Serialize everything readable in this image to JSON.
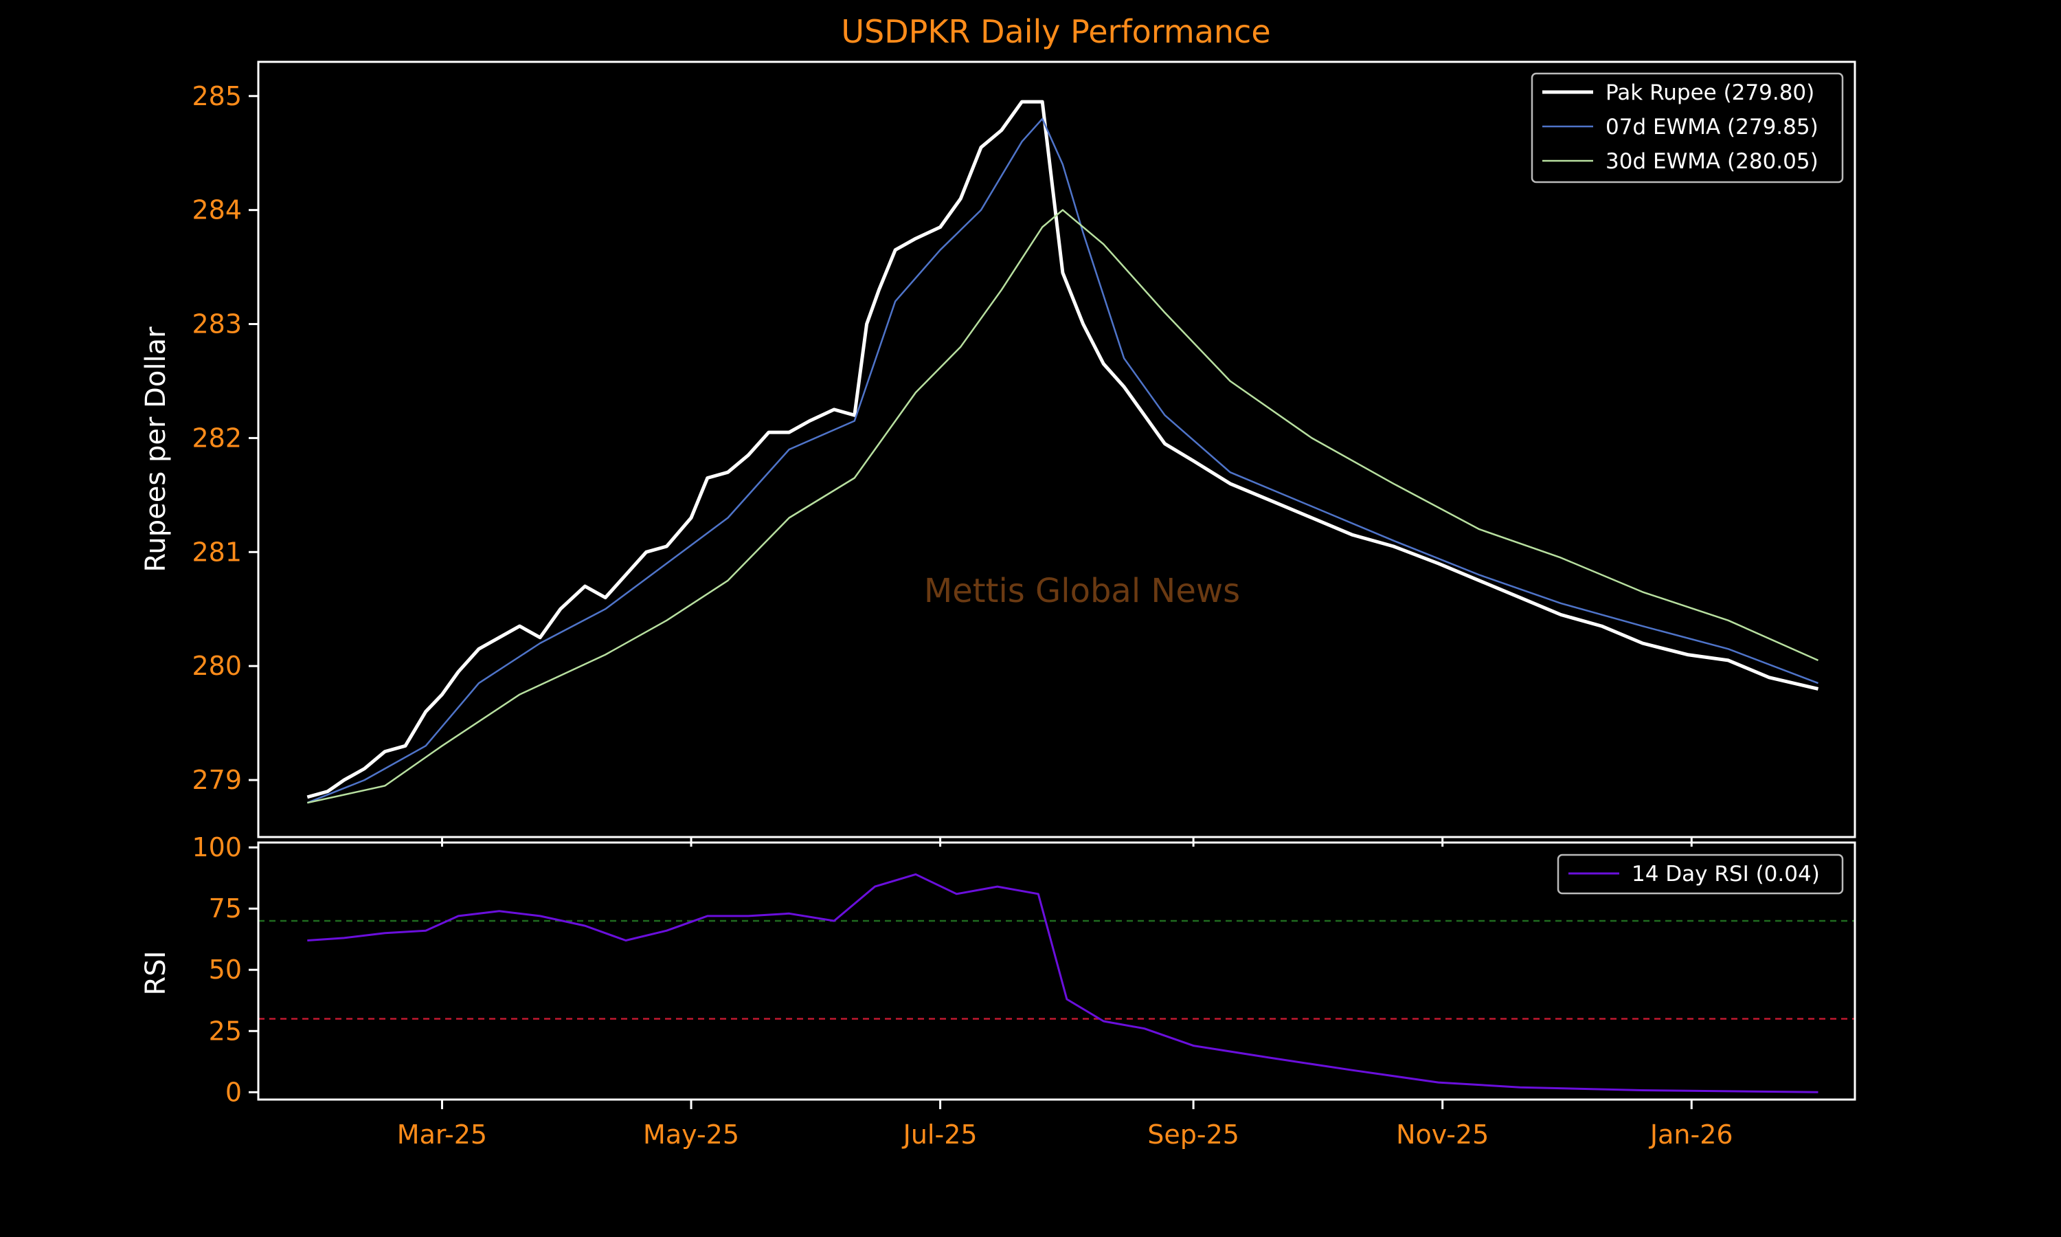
{
  "colors": {
    "background": "#000000",
    "frame": "#ffffff",
    "accent": "#ff8c1a",
    "price": "#ffffff",
    "ewma7": "#4f74c9",
    "ewma30": "#b8e0a0",
    "rsi": "#6a0fdc",
    "overbought": "#1f6b1f",
    "oversold": "#c0192f",
    "watermark": "#6b3a12"
  },
  "watermark": "Mettis Global News",
  "chart_data": [
    {
      "type": "line",
      "panel": "price",
      "title": "USDPKR Daily Performance",
      "ylabel": "Rupees per Dollar",
      "xlabel": "",
      "x_range": [
        "2025-01-15",
        "2026-02-10"
      ],
      "ylim": [
        278.5,
        285.3
      ],
      "yticks": [
        279,
        280,
        281,
        282,
        283,
        284,
        285
      ],
      "xticks": [
        {
          "date": "2025-03-01",
          "label": "Mar-25"
        },
        {
          "date": "2025-05-01",
          "label": "May-25"
        },
        {
          "date": "2025-07-01",
          "label": "Jul-25"
        },
        {
          "date": "2025-09-01",
          "label": "Sep-25"
        },
        {
          "date": "2025-11-01",
          "label": "Nov-25"
        },
        {
          "date": "2026-01-01",
          "label": "Jan-26"
        }
      ],
      "grid": false,
      "legend_position": "top-right",
      "series": [
        {
          "name": "Pak Rupee (279.80)",
          "points": [
            [
              "2025-01-27",
              278.85
            ],
            [
              "2025-02-01",
              278.9
            ],
            [
              "2025-02-05",
              279.0
            ],
            [
              "2025-02-10",
              279.1
            ],
            [
              "2025-02-15",
              279.25
            ],
            [
              "2025-02-20",
              279.3
            ],
            [
              "2025-02-25",
              279.6
            ],
            [
              "2025-03-01",
              279.75
            ],
            [
              "2025-03-05",
              279.95
            ],
            [
              "2025-03-10",
              280.15
            ],
            [
              "2025-03-15",
              280.25
            ],
            [
              "2025-03-20",
              280.35
            ],
            [
              "2025-03-25",
              280.25
            ],
            [
              "2025-03-30",
              280.5
            ],
            [
              "2025-04-05",
              280.7
            ],
            [
              "2025-04-10",
              280.6
            ],
            [
              "2025-04-15",
              280.8
            ],
            [
              "2025-04-20",
              281.0
            ],
            [
              "2025-04-25",
              281.05
            ],
            [
              "2025-05-01",
              281.3
            ],
            [
              "2025-05-05",
              281.65
            ],
            [
              "2025-05-10",
              281.7
            ],
            [
              "2025-05-15",
              281.85
            ],
            [
              "2025-05-20",
              282.05
            ],
            [
              "2025-05-25",
              282.05
            ],
            [
              "2025-05-30",
              282.15
            ],
            [
              "2025-06-05",
              282.25
            ],
            [
              "2025-06-10",
              282.2
            ],
            [
              "2025-06-13",
              283.0
            ],
            [
              "2025-06-16",
              283.3
            ],
            [
              "2025-06-20",
              283.65
            ],
            [
              "2025-06-25",
              283.75
            ],
            [
              "2025-07-01",
              283.85
            ],
            [
              "2025-07-06",
              284.1
            ],
            [
              "2025-07-11",
              284.55
            ],
            [
              "2025-07-16",
              284.7
            ],
            [
              "2025-07-21",
              284.95
            ],
            [
              "2025-07-26",
              284.95
            ],
            [
              "2025-07-31",
              283.45
            ],
            [
              "2025-08-05",
              283.0
            ],
            [
              "2025-08-10",
              282.65
            ],
            [
              "2025-08-15",
              282.45
            ],
            [
              "2025-08-20",
              282.2
            ],
            [
              "2025-08-25",
              281.95
            ],
            [
              "2025-09-01",
              281.8
            ],
            [
              "2025-09-10",
              281.6
            ],
            [
              "2025-09-20",
              281.45
            ],
            [
              "2025-09-30",
              281.3
            ],
            [
              "2025-10-10",
              281.15
            ],
            [
              "2025-10-20",
              281.05
            ],
            [
              "2025-10-31",
              280.9
            ],
            [
              "2025-11-10",
              280.75
            ],
            [
              "2025-11-20",
              280.6
            ],
            [
              "2025-11-30",
              280.45
            ],
            [
              "2025-12-10",
              280.35
            ],
            [
              "2025-12-20",
              280.2
            ],
            [
              "2025-12-31",
              280.1
            ],
            [
              "2026-01-10",
              280.05
            ],
            [
              "2026-01-20",
              279.9
            ],
            [
              "2026-02-01",
              279.8
            ]
          ]
        },
        {
          "name": "07d EWMA (279.85)",
          "points": [
            [
              "2025-01-27",
              278.8
            ],
            [
              "2025-02-10",
              279.0
            ],
            [
              "2025-02-25",
              279.3
            ],
            [
              "2025-03-10",
              279.85
            ],
            [
              "2025-03-25",
              280.2
            ],
            [
              "2025-04-10",
              280.5
            ],
            [
              "2025-04-25",
              280.9
            ],
            [
              "2025-05-10",
              281.3
            ],
            [
              "2025-05-25",
              281.9
            ],
            [
              "2025-06-10",
              282.15
            ],
            [
              "2025-06-20",
              283.2
            ],
            [
              "2025-07-01",
              283.65
            ],
            [
              "2025-07-11",
              284.0
            ],
            [
              "2025-07-21",
              284.6
            ],
            [
              "2025-07-26",
              284.8
            ],
            [
              "2025-07-31",
              284.4
            ],
            [
              "2025-08-05",
              283.8
            ],
            [
              "2025-08-15",
              282.7
            ],
            [
              "2025-08-25",
              282.2
            ],
            [
              "2025-09-10",
              281.7
            ],
            [
              "2025-09-30",
              281.4
            ],
            [
              "2025-10-20",
              281.1
            ],
            [
              "2025-11-10",
              280.8
            ],
            [
              "2025-11-30",
              280.55
            ],
            [
              "2025-12-20",
              280.35
            ],
            [
              "2026-01-10",
              280.15
            ],
            [
              "2026-02-01",
              279.85
            ]
          ]
        },
        {
          "name": "30d EWMA (280.05)",
          "points": [
            [
              "2025-01-27",
              278.8
            ],
            [
              "2025-02-15",
              278.95
            ],
            [
              "2025-03-01",
              279.3
            ],
            [
              "2025-03-20",
              279.75
            ],
            [
              "2025-04-10",
              280.1
            ],
            [
              "2025-04-25",
              280.4
            ],
            [
              "2025-05-10",
              280.75
            ],
            [
              "2025-05-25",
              281.3
            ],
            [
              "2025-06-10",
              281.65
            ],
            [
              "2025-06-25",
              282.4
            ],
            [
              "2025-07-06",
              282.8
            ],
            [
              "2025-07-16",
              283.3
            ],
            [
              "2025-07-26",
              283.85
            ],
            [
              "2025-07-31",
              284.0
            ],
            [
              "2025-08-10",
              283.7
            ],
            [
              "2025-08-25",
              283.1
            ],
            [
              "2025-09-10",
              282.5
            ],
            [
              "2025-09-30",
              282.0
            ],
            [
              "2025-10-20",
              281.6
            ],
            [
              "2025-11-10",
              281.2
            ],
            [
              "2025-11-30",
              280.95
            ],
            [
              "2025-12-20",
              280.65
            ],
            [
              "2026-01-10",
              280.4
            ],
            [
              "2026-02-01",
              280.05
            ]
          ]
        }
      ]
    },
    {
      "type": "line",
      "panel": "rsi",
      "ylabel": "RSI",
      "ylim": [
        -3,
        102
      ],
      "yticks": [
        0,
        25,
        50,
        75,
        100
      ],
      "overbought": 70,
      "oversold": 30,
      "grid": false,
      "legend_position": "top-right",
      "series": [
        {
          "name": "14 Day RSI (0.04)",
          "points": [
            [
              "2025-01-27",
              62
            ],
            [
              "2025-02-05",
              63
            ],
            [
              "2025-02-15",
              65
            ],
            [
              "2025-02-25",
              66
            ],
            [
              "2025-03-05",
              72
            ],
            [
              "2025-03-15",
              74
            ],
            [
              "2025-03-25",
              72
            ],
            [
              "2025-04-05",
              68
            ],
            [
              "2025-04-15",
              62
            ],
            [
              "2025-04-25",
              66
            ],
            [
              "2025-05-05",
              72
            ],
            [
              "2025-05-15",
              72
            ],
            [
              "2025-05-25",
              73
            ],
            [
              "2025-06-05",
              70
            ],
            [
              "2025-06-15",
              84
            ],
            [
              "2025-06-25",
              89
            ],
            [
              "2025-07-05",
              81
            ],
            [
              "2025-07-15",
              84
            ],
            [
              "2025-07-25",
              81
            ],
            [
              "2025-08-01",
              38
            ],
            [
              "2025-08-10",
              29
            ],
            [
              "2025-08-20",
              26
            ],
            [
              "2025-09-01",
              19
            ],
            [
              "2025-09-20",
              14
            ],
            [
              "2025-10-10",
              9
            ],
            [
              "2025-10-31",
              4
            ],
            [
              "2025-11-20",
              2
            ],
            [
              "2025-12-20",
              0.8
            ],
            [
              "2026-02-01",
              0.04
            ]
          ]
        }
      ]
    }
  ]
}
